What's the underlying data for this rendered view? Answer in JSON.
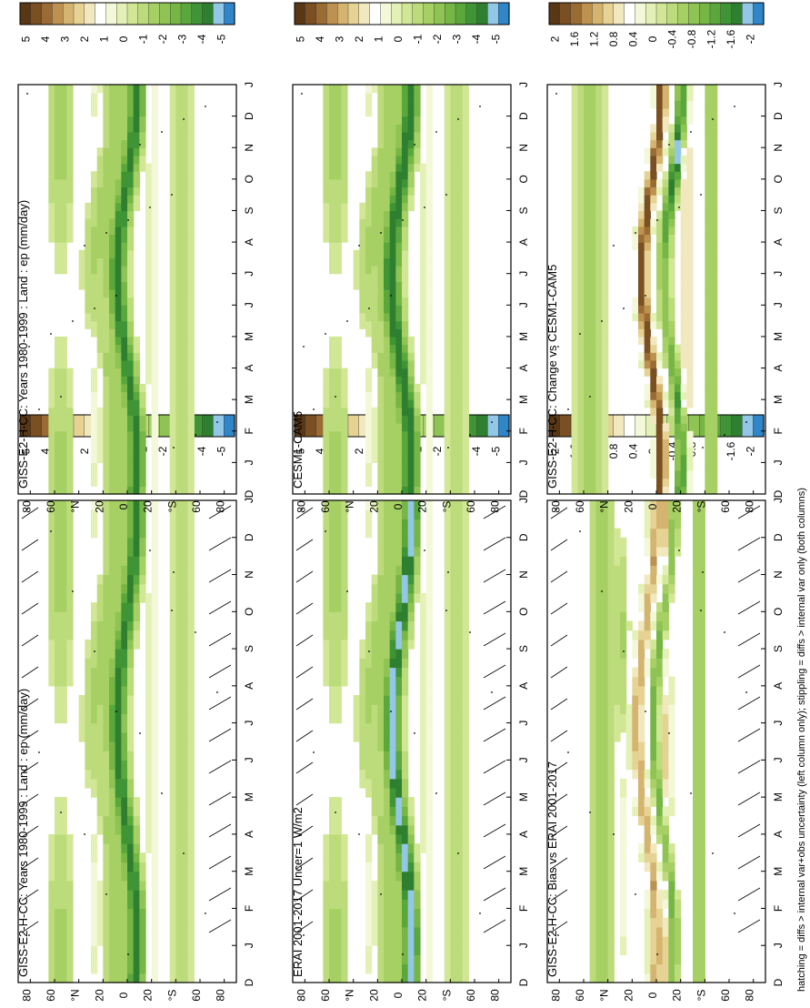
{
  "footer_note": "hatching = diffs > internal var+obs uncertainty (left column only); stippling = diffs > internal var only (both columns)",
  "chart_data": [
    {
      "type": "heatmap",
      "title": "GISS-E2-H-CC: Years 1980-1999 : Land : ep (mm/day)",
      "x_ticks": [
        "D",
        "J",
        "F",
        "M",
        "A",
        "M",
        "J",
        "J",
        "A",
        "S",
        "O",
        "N",
        "D",
        "J"
      ],
      "y_ticks": [
        "80",
        "60",
        "°N",
        "20",
        "0",
        "20",
        "°S",
        "60",
        "80"
      ],
      "colorbar": {
        "labels": [
          "5",
          "4",
          "3",
          "2",
          "1",
          "0",
          "-1",
          "-2",
          "-3",
          "-4",
          "-5"
        ],
        "colors": [
          "#5a3714",
          "#7a4f22",
          "#9a6b33",
          "#bd9150",
          "#d4b46e",
          "#e6d393",
          "#f2e8bf",
          "#ffffff",
          "#f3f8d9",
          "#e4f1b6",
          "#d1e795",
          "#bcdc7b",
          "#a6d064",
          "#8fc454",
          "#75b644",
          "#5aa73c",
          "#3f9536",
          "#2f7f30",
          "#93c7e8",
          "#2f86c9"
        ]
      },
      "hatching": true
    },
    {
      "type": "heatmap",
      "title": "GISS-E2-H-CC: Years 1980-1999 : Land : ep (mm/day)",
      "x_ticks": [
        "D",
        "J",
        "F",
        "M",
        "A",
        "M",
        "J",
        "J",
        "A",
        "S",
        "O",
        "N",
        "D",
        "J"
      ],
      "y_ticks": [
        "80",
        "60",
        "°N",
        "20",
        "0",
        "20",
        "°S",
        "60",
        "80"
      ],
      "colorbar": {
        "labels": [
          "5",
          "4",
          "3",
          "2",
          "1",
          "0",
          "-1",
          "-2",
          "-3",
          "-4",
          "-5"
        ],
        "colors": [
          "#5a3714",
          "#7a4f22",
          "#9a6b33",
          "#bd9150",
          "#d4b46e",
          "#e6d393",
          "#f2e8bf",
          "#ffffff",
          "#f3f8d9",
          "#e4f1b6",
          "#d1e795",
          "#bcdc7b",
          "#a6d064",
          "#8fc454",
          "#75b644",
          "#5aa73c",
          "#3f9536",
          "#2f7f30",
          "#93c7e8",
          "#2f86c9"
        ]
      },
      "hatching": false
    },
    {
      "type": "heatmap",
      "title": "ERAI 2001-2017 Uncer=1 W/m2",
      "x_ticks": [
        "D",
        "J",
        "F",
        "M",
        "A",
        "M",
        "J",
        "J",
        "A",
        "S",
        "O",
        "N",
        "D",
        "J"
      ],
      "y_ticks": [
        "80",
        "60",
        "°N",
        "20",
        "0",
        "20",
        "°S",
        "60",
        "80"
      ],
      "colorbar": {
        "labels": [
          "5",
          "4",
          "3",
          "2",
          "1",
          "0",
          "-1",
          "-2",
          "-3",
          "-4",
          "-5"
        ],
        "colors": [
          "#5a3714",
          "#7a4f22",
          "#9a6b33",
          "#bd9150",
          "#d4b46e",
          "#e6d393",
          "#f2e8bf",
          "#ffffff",
          "#f3f8d9",
          "#e4f1b6",
          "#d1e795",
          "#bcdc7b",
          "#a6d064",
          "#8fc454",
          "#75b644",
          "#5aa73c",
          "#3f9536",
          "#2f7f30",
          "#93c7e8",
          "#2f86c9"
        ]
      },
      "hatching": true
    },
    {
      "type": "heatmap",
      "title": "CESM1-CAM5",
      "x_ticks": [
        "D",
        "J",
        "F",
        "M",
        "A",
        "M",
        "J",
        "J",
        "A",
        "S",
        "O",
        "N",
        "D",
        "J"
      ],
      "y_ticks": [
        "80",
        "60",
        "°N",
        "20",
        "0",
        "20",
        "°S",
        "60",
        "80"
      ],
      "colorbar": {
        "labels": [
          "5",
          "4",
          "3",
          "2",
          "1",
          "0",
          "-1",
          "-2",
          "-3",
          "-4",
          "-5"
        ],
        "colors": [
          "#5a3714",
          "#7a4f22",
          "#9a6b33",
          "#bd9150",
          "#d4b46e",
          "#e6d393",
          "#f2e8bf",
          "#ffffff",
          "#f3f8d9",
          "#e4f1b6",
          "#d1e795",
          "#bcdc7b",
          "#a6d064",
          "#8fc454",
          "#75b644",
          "#5aa73c",
          "#3f9536",
          "#2f7f30",
          "#93c7e8",
          "#2f86c9"
        ]
      },
      "hatching": false
    },
    {
      "type": "heatmap",
      "title": "GISS-E2-H-CC: Bias vs ERAI 2001-2017",
      "x_ticks": [
        "D",
        "J",
        "F",
        "M",
        "A",
        "M",
        "J",
        "J",
        "A",
        "S",
        "O",
        "N",
        "D",
        "J"
      ],
      "y_ticks": [
        "80",
        "60",
        "°N",
        "20",
        "0",
        "20",
        "°S",
        "60",
        "80"
      ],
      "colorbar": {
        "labels": [
          "2",
          "1.6",
          "1.2",
          "0.8",
          "0.4",
          "0",
          "-0.4",
          "-0.8",
          "-1.2",
          "-1.6",
          "-2"
        ],
        "colors": [
          "#5a3714",
          "#7a4f22",
          "#9a6b33",
          "#bd9150",
          "#d4b46e",
          "#e6d393",
          "#f2e8bf",
          "#ffffff",
          "#f3f8d9",
          "#e4f1b6",
          "#d1e795",
          "#bcdc7b",
          "#a6d064",
          "#8fc454",
          "#75b644",
          "#5aa73c",
          "#3f9536",
          "#2f7f30",
          "#93c7e8",
          "#2f86c9"
        ]
      },
      "hatching": true
    },
    {
      "type": "heatmap",
      "title": "GISS-E2-H-CC: Change vs CESM1-CAM5",
      "x_ticks": [
        "D",
        "J",
        "F",
        "M",
        "A",
        "M",
        "J",
        "J",
        "A",
        "S",
        "O",
        "N",
        "D",
        "J"
      ],
      "y_ticks": [
        "80",
        "60",
        "°N",
        "20",
        "0",
        "20",
        "°S",
        "60",
        "80"
      ],
      "colorbar": {
        "labels": [
          "2",
          "1.6",
          "1.2",
          "0.8",
          "0.4",
          "0",
          "-0.4",
          "-0.8",
          "-1.2",
          "-1.6",
          "-2"
        ],
        "colors": [
          "#5a3714",
          "#7a4f22",
          "#9a6b33",
          "#bd9150",
          "#d4b46e",
          "#e6d393",
          "#f2e8bf",
          "#ffffff",
          "#f3f8d9",
          "#e4f1b6",
          "#d1e795",
          "#bcdc7b",
          "#a6d064",
          "#8fc454",
          "#75b644",
          "#5aa73c",
          "#3f9536",
          "#2f7f30",
          "#93c7e8",
          "#2f86c9"
        ]
      },
      "hatching": false
    }
  ]
}
